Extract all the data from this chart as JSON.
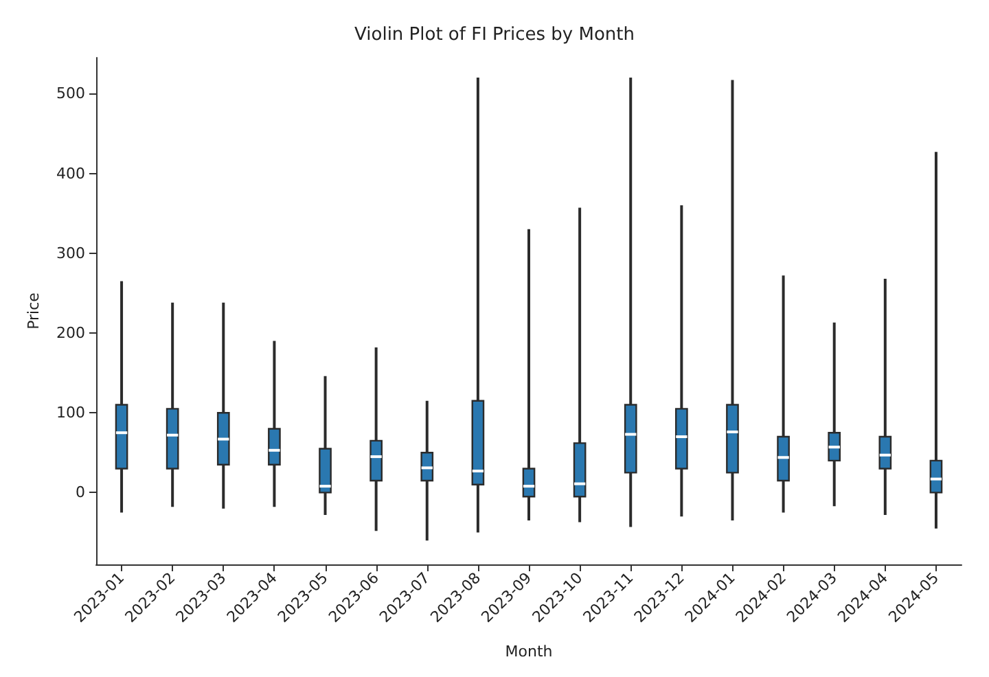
{
  "chart_data": {
    "type": "box",
    "title": "Violin Plot of FI Prices by Month",
    "xlabel": "Month",
    "ylabel": "Price",
    "categories": [
      "2023-01",
      "2023-02",
      "2023-03",
      "2023-04",
      "2023-05",
      "2023-06",
      "2023-07",
      "2023-08",
      "2023-09",
      "2023-10",
      "2023-11",
      "2023-12",
      "2024-01",
      "2024-02",
      "2024-03",
      "2024-04",
      "2024-05"
    ],
    "color": "#2a78b0",
    "boxes": [
      {
        "low": -25,
        "q1": 30,
        "median": 75,
        "q3": 110,
        "high": 265
      },
      {
        "low": -18,
        "q1": 30,
        "median": 72,
        "q3": 105,
        "high": 238
      },
      {
        "low": -20,
        "q1": 35,
        "median": 67,
        "q3": 100,
        "high": 238
      },
      {
        "low": -18,
        "q1": 35,
        "median": 53,
        "q3": 80,
        "high": 190
      },
      {
        "low": -28,
        "q1": 0,
        "median": 8,
        "q3": 55,
        "high": 146
      },
      {
        "low": -48,
        "q1": 15,
        "median": 45,
        "q3": 65,
        "high": 182
      },
      {
        "low": -60,
        "q1": 15,
        "median": 31,
        "q3": 50,
        "high": 115
      },
      {
        "low": -50,
        "q1": 10,
        "median": 27,
        "q3": 115,
        "high": 520
      },
      {
        "low": -35,
        "q1": -5,
        "median": 8,
        "q3": 30,
        "high": 330
      },
      {
        "low": -37,
        "q1": -5,
        "median": 11,
        "q3": 62,
        "high": 357
      },
      {
        "low": -43,
        "q1": 25,
        "median": 73,
        "q3": 110,
        "high": 520
      },
      {
        "low": -30,
        "q1": 30,
        "median": 70,
        "q3": 105,
        "high": 360
      },
      {
        "low": -35,
        "q1": 25,
        "median": 76,
        "q3": 110,
        "high": 517
      },
      {
        "low": -25,
        "q1": 15,
        "median": 44,
        "q3": 70,
        "high": 272
      },
      {
        "low": -17,
        "q1": 40,
        "median": 57,
        "q3": 75,
        "high": 213
      },
      {
        "low": -28,
        "q1": 30,
        "median": 47,
        "q3": 70,
        "high": 268
      },
      {
        "low": -45,
        "q1": 0,
        "median": 17,
        "q3": 40,
        "high": 427
      }
    ],
    "ylim": [
      -90,
      545
    ],
    "yticks": [
      0,
      100,
      200,
      300,
      400,
      500
    ]
  }
}
